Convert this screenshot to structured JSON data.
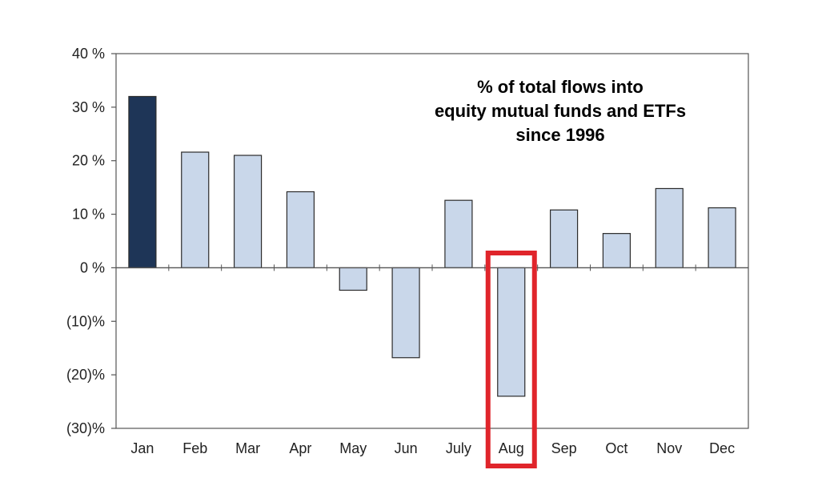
{
  "chart_data": {
    "type": "bar",
    "title_lines": [
      "% of total flows into",
      "equity mutual funds and ETFs",
      "since 1996"
    ],
    "categories": [
      "Jan",
      "Feb",
      "Mar",
      "Apr",
      "May",
      "Jun",
      "July",
      "Aug",
      "Sep",
      "Oct",
      "Nov",
      "Dec"
    ],
    "series": [
      {
        "values": [
          32,
          21.6,
          21,
          14.2,
          -4.2,
          -16.8,
          12.6,
          -24,
          10.8,
          6.4,
          14.8,
          11.2
        ]
      }
    ],
    "ylim": [
      -30,
      40
    ],
    "yticks": [
      40,
      30,
      20,
      10,
      0,
      -10,
      -20,
      -30
    ],
    "ytick_labels": [
      "40 %",
      "30 %",
      "20 %",
      "10 %",
      "0 %",
      "(10)%",
      "(20)%",
      "(30)%"
    ],
    "grid": false,
    "legend": "none",
    "highlight_category": "Aug",
    "colors": {
      "bar": "#c9d7ea",
      "highlight_first_bar": "#1e3557",
      "bar_stroke": "#2b2b2b",
      "highlight_box": "#e0252b",
      "axis": "#555555"
    }
  }
}
